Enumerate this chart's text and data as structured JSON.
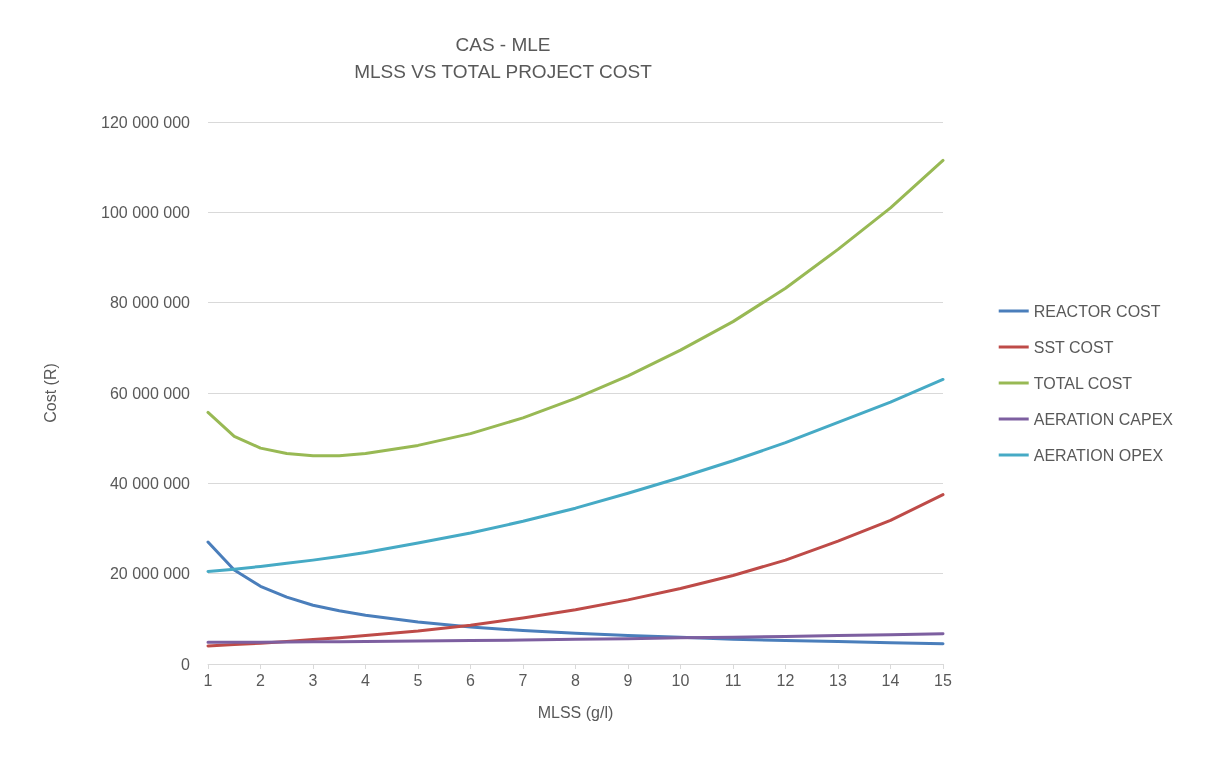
{
  "chart_data": {
    "type": "line",
    "title": "CAS - MLE",
    "subtitle": "MLSS VS TOTAL PROJECT COST",
    "xlabel": "MLSS (g/l)",
    "ylabel": "Cost (R)",
    "x": [
      1,
      1.5,
      2,
      2.5,
      3,
      3.5,
      4,
      5,
      6,
      7,
      8,
      9,
      10,
      11,
      12,
      13,
      14,
      15
    ],
    "series": [
      {
        "name": "REACTOR COST",
        "color": "#4a7ebb",
        "values": [
          27000000,
          20800000,
          17200000,
          14800000,
          13000000,
          11800000,
          10800000,
          9300000,
          8200000,
          7400000,
          6800000,
          6300000,
          5900000,
          5500000,
          5200000,
          5000000,
          4700000,
          4500000
        ]
      },
      {
        "name": "SST COST",
        "color": "#be4b48",
        "values": [
          4000000,
          4300000,
          4600000,
          5000000,
          5400000,
          5800000,
          6300000,
          7300000,
          8600000,
          10200000,
          12000000,
          14200000,
          16700000,
          19600000,
          23000000,
          27200000,
          31800000,
          37500000
        ]
      },
      {
        "name": "TOTAL COST",
        "color": "#98b954",
        "values": [
          55700000,
          50400000,
          47800000,
          46600000,
          46100000,
          46100000,
          46600000,
          48400000,
          51000000,
          54500000,
          58800000,
          63800000,
          69500000,
          75800000,
          83200000,
          91800000,
          101000000,
          111500000
        ]
      },
      {
        "name": "AERATION CAPEX",
        "color": "#7d5fa0",
        "values": [
          4800000,
          4800000,
          4800000,
          4850000,
          4900000,
          4900000,
          5000000,
          5100000,
          5200000,
          5300000,
          5500000,
          5600000,
          5800000,
          5900000,
          6100000,
          6300000,
          6500000,
          6700000
        ]
      },
      {
        "name": "AERATION OPEX",
        "color": "#46aac5",
        "values": [
          20500000,
          21000000,
          21600000,
          22300000,
          23000000,
          23800000,
          24700000,
          26800000,
          29000000,
          31600000,
          34500000,
          37800000,
          41300000,
          45000000,
          49000000,
          53500000,
          58000000,
          63000000
        ]
      }
    ],
    "xlim": [
      1,
      15
    ],
    "xticks": [
      1,
      2,
      3,
      4,
      5,
      6,
      7,
      8,
      9,
      10,
      11,
      12,
      13,
      14,
      15
    ],
    "ylim": [
      0,
      120000000
    ],
    "yticks": [
      0,
      {
        "value": 20000000,
        "label": "20 000 000"
      },
      {
        "value": 40000000,
        "label": "40 000 000"
      },
      {
        "value": 60000000,
        "label": "60 000 000"
      },
      {
        "value": 80000000,
        "label": "80 000 000"
      },
      {
        "value": 100000000,
        "label": "100 000 000"
      },
      {
        "value": 120000000,
        "label": "120 000 000"
      }
    ],
    "grid": "y",
    "legend": "right",
    "marker": "none",
    "line_style": "solid"
  }
}
